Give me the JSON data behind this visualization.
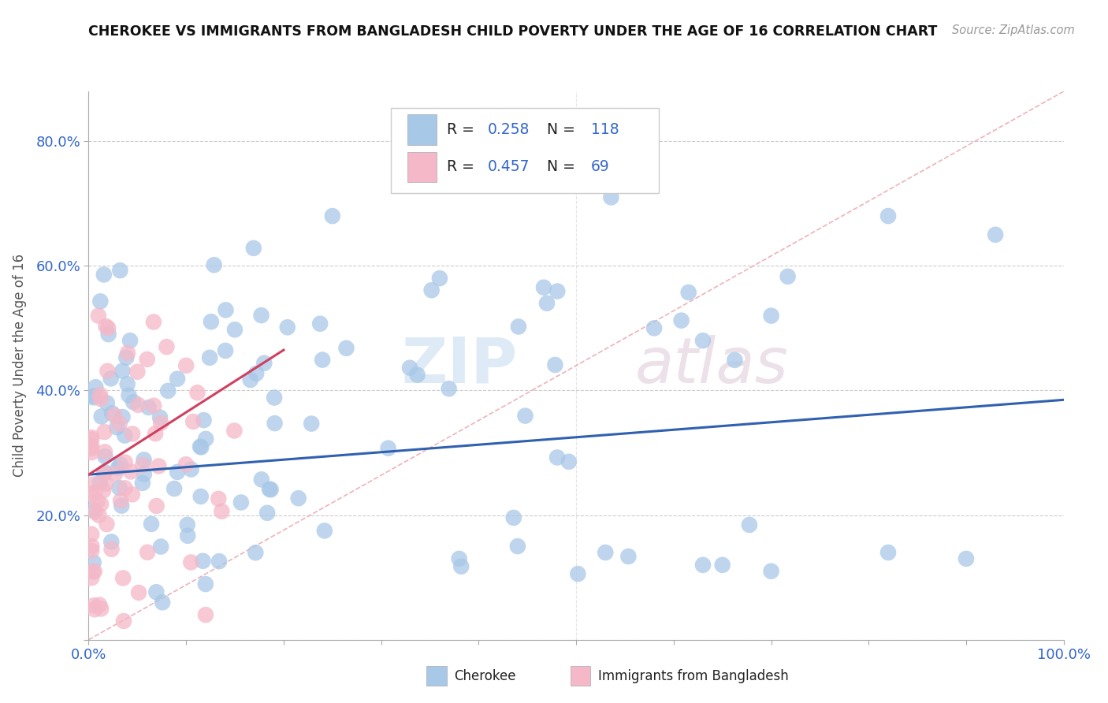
{
  "title": "CHEROKEE VS IMMIGRANTS FROM BANGLADESH CHILD POVERTY UNDER THE AGE OF 16 CORRELATION CHART",
  "source": "Source: ZipAtlas.com",
  "ylabel": "Child Poverty Under the Age of 16",
  "xlim": [
    0.0,
    1.0
  ],
  "ylim": [
    0.0,
    0.88
  ],
  "cherokee_color": "#a8c8e8",
  "bangladesh_color": "#f4b8c8",
  "cherokee_line_color": "#3060b0",
  "bangladesh_line_color": "#d04060",
  "diagonal_color": "#e8a0a8",
  "legend_cherokee": "Cherokee",
  "legend_bangladesh": "Immigrants from Bangladesh",
  "r_color": "#3366cc",
  "n_color": "#3366cc",
  "tick_color": "#3366cc",
  "grid_color": "#cccccc",
  "watermark_zip_color": "#c8dff0",
  "watermark_atlas_color": "#ddc8d8"
}
